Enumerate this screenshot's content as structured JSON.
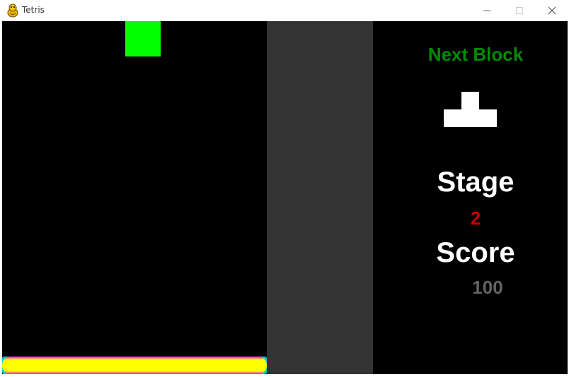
{
  "window": {
    "title": "Tetris",
    "icon": "pygame-snake-icon",
    "controls": [
      "minimize-icon",
      "maximize-icon",
      "close-icon"
    ]
  },
  "game": {
    "falling_block": {
      "shape": "O",
      "color": "#00ff00",
      "column": 3,
      "row": 0
    },
    "progress": {
      "fraction": 1.0,
      "colors": {
        "fill": "#ffff00",
        "edge": "#ff00ff",
        "track": "#00c8c8"
      }
    },
    "colors": {
      "playfield": "#000000",
      "gutter": "#333333",
      "panel": "#000000"
    }
  },
  "side_panel": {
    "next_block_label": "Next Block",
    "next_block_label_color": "#008c00",
    "next_block": {
      "shape": "T",
      "color": "#ffffff"
    },
    "stage_label": "Stage",
    "stage_value": "2",
    "stage_value_color": "#c80000",
    "score_label": "Score",
    "score_value": "100",
    "score_value_color": "#646464"
  }
}
